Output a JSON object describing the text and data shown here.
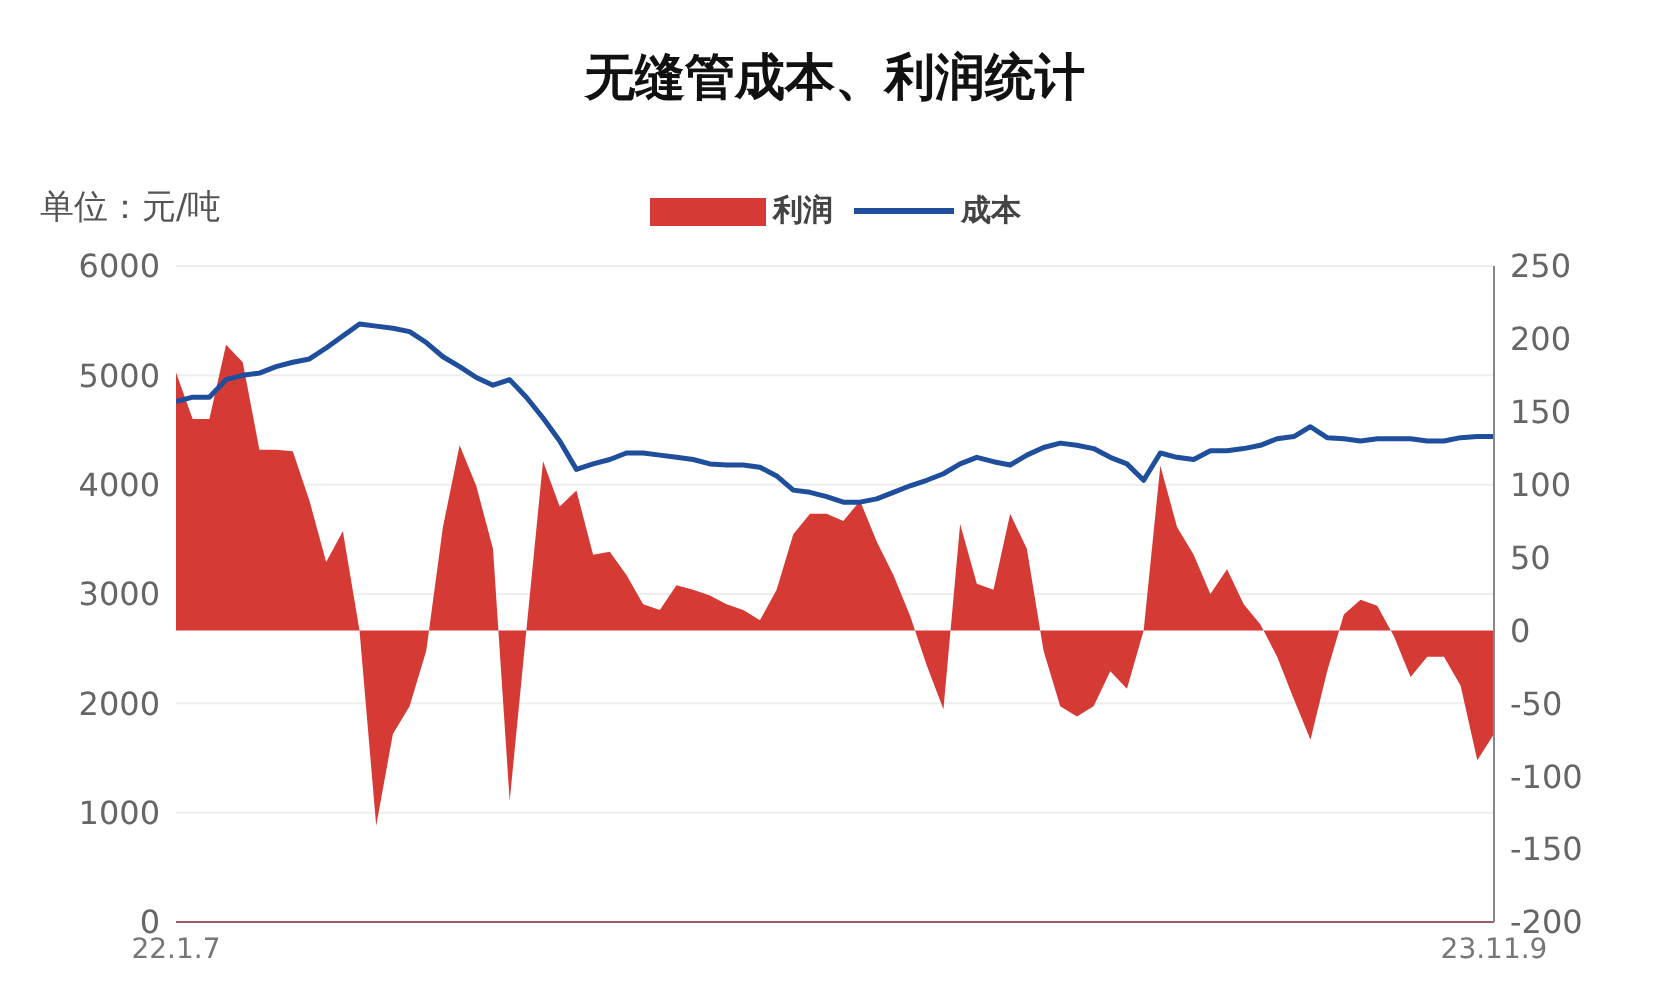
{
  "chart_data": {
    "type": "line",
    "title": "无缝管成本、利润统计",
    "ylabel": "单位：元/吨",
    "categories": [
      "22.1.7",
      null,
      null,
      null,
      null,
      null,
      null,
      null,
      null,
      null,
      null,
      null,
      null,
      null,
      null,
      null,
      null,
      null,
      null,
      null,
      null,
      null,
      null,
      null,
      null,
      null,
      null,
      null,
      null,
      null,
      null,
      null,
      null,
      null,
      null,
      null,
      null,
      null,
      null,
      null,
      null,
      null,
      null,
      null,
      null,
      null,
      null,
      null,
      null,
      null,
      null,
      null,
      null,
      null,
      null,
      null,
      null,
      null,
      null,
      null,
      null,
      null,
      null,
      null,
      null,
      null,
      null,
      null,
      null,
      null,
      null,
      null,
      null,
      null,
      null,
      null,
      null,
      null,
      null,
      "23.11.9"
    ],
    "series": [
      {
        "name": "利润",
        "type": "area",
        "axis": "y2",
        "color": "#d63a35",
        "values": [
          177,
          145,
          145,
          196,
          184,
          124,
          124,
          123,
          89,
          47,
          68,
          0,
          -134,
          -71,
          -52,
          -14,
          71,
          127,
          99,
          56,
          -117,
          0,
          116,
          85,
          96,
          52,
          54,
          38,
          18,
          14,
          31,
          28,
          24,
          18,
          14,
          7,
          28,
          66,
          80,
          80,
          75,
          89,
          61,
          38,
          10,
          -24,
          -54,
          73,
          32,
          28,
          80,
          56,
          -14,
          -52,
          -59,
          -52,
          -28,
          -40,
          0,
          113,
          71,
          52,
          25,
          42,
          18,
          4,
          -18,
          -47,
          -75,
          -28,
          11,
          21,
          17,
          -4,
          -32,
          -18,
          -18,
          -38,
          -89,
          -71
        ]
      },
      {
        "name": "成本",
        "color": "#1f4e9c",
        "values": [
          4760,
          4800,
          4800,
          4960,
          5000,
          5020,
          5080,
          5120,
          5150,
          5250,
          5360,
          5470,
          5450,
          5430,
          5400,
          5300,
          5170,
          5080,
          4980,
          4910,
          4960,
          4800,
          4610,
          4400,
          4140,
          4190,
          4230,
          4290,
          4290,
          4270,
          4250,
          4230,
          4190,
          4180,
          4180,
          4160,
          4080,
          3950,
          3930,
          3890,
          3840,
          3840,
          3870,
          3930,
          3990,
          4040,
          4100,
          4190,
          4250,
          4210,
          4180,
          4270,
          4340,
          4380,
          4360,
          4330,
          4250,
          4190,
          4040,
          4290,
          4250,
          4230,
          4310,
          4310,
          4330,
          4360,
          4420,
          4440,
          4530,
          4430,
          4420,
          4400,
          4420,
          4420,
          4420,
          4400,
          4400,
          4430,
          4440,
          4440
        ]
      }
    ],
    "ylim": [
      0,
      6000
    ],
    "yticks": [
      0,
      1000,
      2000,
      3000,
      4000,
      5000,
      6000
    ],
    "y2lim": [
      -200,
      250
    ],
    "y2ticks": [
      -200,
      -150,
      -100,
      -50,
      0,
      50,
      100,
      150,
      200,
      250
    ],
    "grid": "y",
    "legend": "top",
    "marker": "none"
  }
}
